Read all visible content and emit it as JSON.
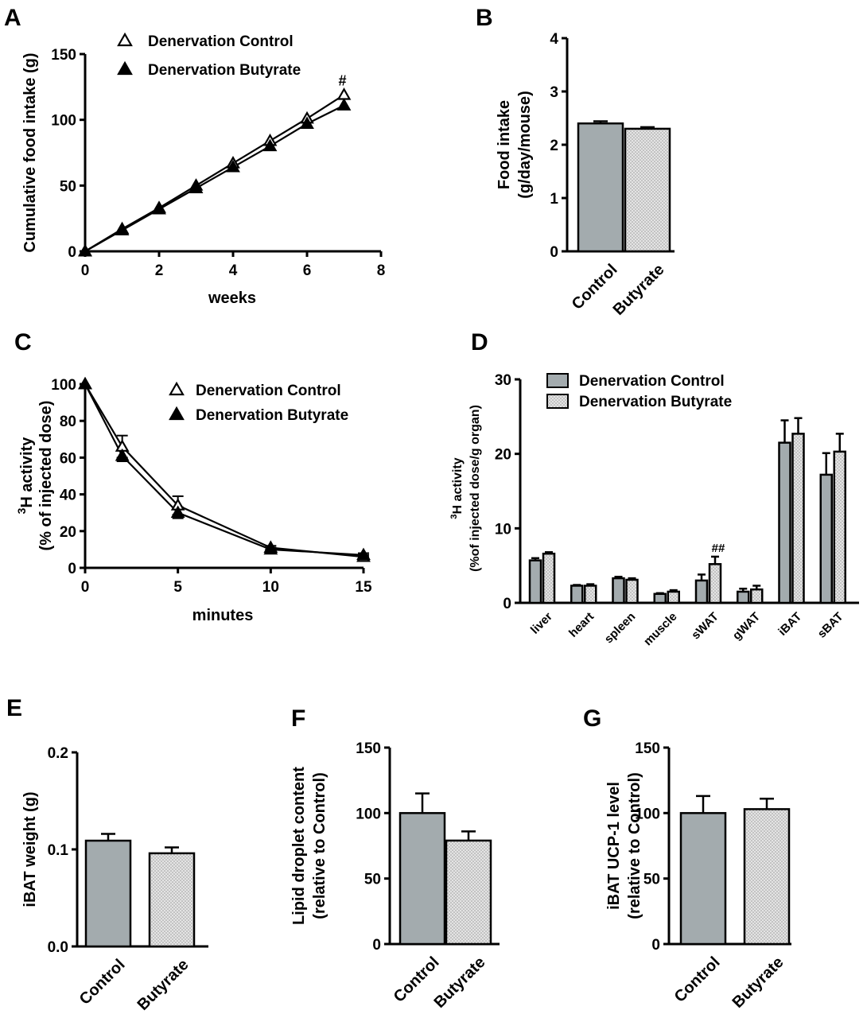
{
  "colors": {
    "control_fill": "#a3abae",
    "butyrate_fill": "#e2e2e2",
    "butyrate_dot": "#9a9a9a",
    "stroke": "#000000"
  },
  "panels": {
    "A": "A",
    "B": "B",
    "C": "C",
    "D": "D",
    "E": "E",
    "F": "F",
    "G": "G"
  },
  "chart_data": [
    {
      "id": "A",
      "type": "line",
      "xlabel": "weeks",
      "ylabel": "Cumulative food intake  (g)",
      "xlim": [
        0,
        8
      ],
      "ylim": [
        0,
        150
      ],
      "xticks": [
        "0",
        "2",
        "4",
        "6",
        "8"
      ],
      "yticks": [
        "0",
        "50",
        "100",
        "150"
      ],
      "legend_position": "top-center",
      "annotation": "#",
      "series": [
        {
          "name": "Denervation Control",
          "marker": "open-triangle",
          "x": [
            0,
            1,
            2,
            3,
            4,
            5,
            6,
            7
          ],
          "y": [
            0,
            17,
            33,
            50,
            67,
            84,
            101,
            119
          ]
        },
        {
          "name": "Denervation Butyrate",
          "marker": "filled-triangle",
          "x": [
            0,
            1,
            2,
            3,
            4,
            5,
            6,
            7
          ],
          "y": [
            0,
            16,
            32,
            48,
            64,
            80,
            97,
            111
          ]
        }
      ]
    },
    {
      "id": "B",
      "type": "bar",
      "ylabel": "Food intake",
      "ylabel2": "(g/day/mouse)",
      "ylim": [
        0,
        4
      ],
      "yticks": [
        "0",
        "1",
        "2",
        "3",
        "4"
      ],
      "categories": [
        "Control",
        "Butyrate"
      ],
      "values": [
        2.4,
        2.3
      ],
      "errors": [
        0.04,
        0.03
      ]
    },
    {
      "id": "C",
      "type": "line",
      "xlabel": "minutes",
      "ylabel": "H activity",
      "ylabel_sup": "3",
      "ylabel2": "(% of injected dose)",
      "xlim": [
        0,
        15
      ],
      "ylim": [
        0,
        100
      ],
      "xticks": [
        "0",
        "5",
        "10",
        "15"
      ],
      "yticks": [
        "0",
        "20",
        "40",
        "60",
        "80",
        "100"
      ],
      "legend_position": "top-right",
      "series": [
        {
          "name": "Denervation Control",
          "marker": "open-triangle",
          "x": [
            0,
            2,
            5,
            10,
            15
          ],
          "y": [
            100,
            66,
            34,
            11,
            6
          ],
          "err": [
            0,
            6,
            5,
            1,
            1
          ]
        },
        {
          "name": "Denervation Butyrate",
          "marker": "filled-triangle",
          "x": [
            0,
            2,
            5,
            10,
            15
          ],
          "y": [
            100,
            61,
            30,
            10,
            7
          ],
          "err": [
            0,
            3,
            3,
            1,
            1
          ]
        }
      ]
    },
    {
      "id": "D",
      "type": "bar",
      "ylabel": "H activity",
      "ylabel_sup": "3",
      "ylabel2": "(%of injected dose/g organ)",
      "ylim": [
        0,
        30
      ],
      "yticks": [
        "0",
        "10",
        "20",
        "30"
      ],
      "legend_position": "top-left",
      "annotation": "##",
      "categories": [
        "liver",
        "heart",
        "spleen",
        "muscle",
        "sWAT",
        "gWAT",
        "iBAT",
        "sBAT"
      ],
      "series": [
        {
          "name": "Denervation Control",
          "values": [
            5.7,
            2.3,
            3.3,
            1.2,
            3.0,
            1.5,
            21.5,
            17.2
          ],
          "errors": [
            0.3,
            0.1,
            0.2,
            0.1,
            0.8,
            0.4,
            3.0,
            2.9
          ]
        },
        {
          "name": "Denervation Butyrate",
          "values": [
            6.6,
            2.3,
            3.1,
            1.5,
            5.2,
            1.8,
            22.7,
            20.3
          ],
          "errors": [
            0.2,
            0.2,
            0.2,
            0.2,
            1.0,
            0.5,
            2.1,
            2.4
          ]
        }
      ]
    },
    {
      "id": "E",
      "type": "bar",
      "ylabel": "iBAT weight (g)",
      "ylim": [
        0,
        0.2
      ],
      "yticks": [
        "0.0",
        "0.1",
        "0.2"
      ],
      "categories": [
        "Control",
        "Butyrate"
      ],
      "values": [
        0.109,
        0.096
      ],
      "errors": [
        0.007,
        0.006
      ]
    },
    {
      "id": "F",
      "type": "bar",
      "ylabel": "Lipid droplet content",
      "ylabel2": "(relative to Control)",
      "ylim": [
        0,
        150
      ],
      "yticks": [
        "0",
        "50",
        "100",
        "150"
      ],
      "categories": [
        "Control",
        "Butyrate"
      ],
      "values": [
        100,
        79
      ],
      "errors": [
        15,
        7
      ]
    },
    {
      "id": "G",
      "type": "bar",
      "ylabel": "iBAT UCP-1 level",
      "ylabel2": "(relative to Control)",
      "ylim": [
        0,
        150
      ],
      "yticks": [
        "0",
        "50",
        "100",
        "150"
      ],
      "categories": [
        "Control",
        "Butyrate"
      ],
      "values": [
        100,
        103
      ],
      "errors": [
        13,
        8
      ]
    }
  ]
}
